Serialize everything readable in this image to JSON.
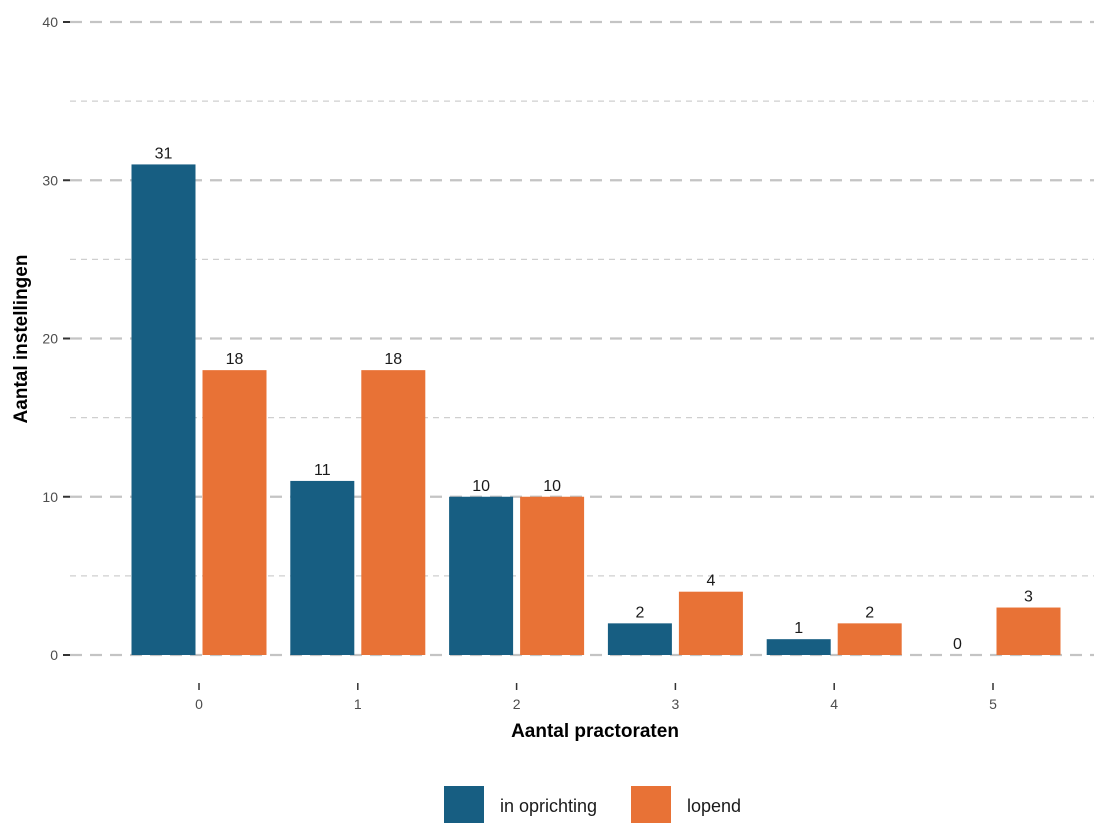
{
  "chart_data": {
    "type": "bar",
    "categories": [
      "0",
      "1",
      "2",
      "3",
      "4",
      "5"
    ],
    "series": [
      {
        "name": "in oprichting",
        "color": "#175e82",
        "values": [
          31,
          11,
          10,
          2,
          1,
          0
        ]
      },
      {
        "name": "lopend",
        "color": "#e87236",
        "values": [
          18,
          18,
          10,
          4,
          2,
          3
        ]
      }
    ],
    "xlabel": "Aantal practoraten",
    "ylabel": "Aantal instellingen",
    "ylim": [
      0,
      40
    ],
    "yticks": [
      0,
      10,
      20,
      30,
      40
    ],
    "grid": "dashed horizontal major and minor",
    "legend": "bottom"
  }
}
